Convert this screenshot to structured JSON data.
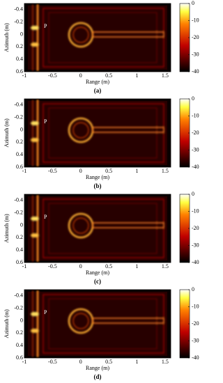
{
  "chart_data": [
    {
      "type": "heatmap",
      "caption": "(a)",
      "xlabel": "Range (m)",
      "ylabel": "Azimuth (m)",
      "annotation": "P",
      "xlim": [
        -1,
        1.6
      ],
      "xticks": [
        -1,
        -0.5,
        0,
        0.5,
        1,
        1.5
      ],
      "ylim": [
        -0.5,
        0.6
      ],
      "yticks": [
        -0.4,
        -0.2,
        0,
        0.2,
        0.4,
        0.6
      ],
      "colormap": "hot",
      "clim": [
        -40,
        0
      ],
      "cticks": [
        0,
        -10,
        -20,
        -30,
        -40
      ]
    },
    {
      "type": "heatmap",
      "caption": "(b)",
      "xlabel": "Range (m)",
      "ylabel": "Azimuth (m)",
      "annotation": "P",
      "xlim": [
        -1,
        1.6
      ],
      "xticks": [
        -1,
        -0.5,
        0,
        0.5,
        1,
        1.5
      ],
      "ylim": [
        -0.5,
        0.6
      ],
      "yticks": [
        -0.4,
        -0.2,
        0,
        0.2,
        0.4,
        0.6
      ],
      "colormap": "hot",
      "clim": [
        -40,
        0
      ],
      "cticks": [
        0,
        -10,
        -20,
        -30,
        -40
      ]
    },
    {
      "type": "heatmap",
      "caption": "(c)",
      "xlabel": "Range (m)",
      "ylabel": "Azimuth (m)",
      "annotation": "P",
      "xlim": [
        -1,
        1.6
      ],
      "xticks": [
        -1,
        -0.5,
        0,
        0.5,
        1,
        1.5
      ],
      "ylim": [
        -0.5,
        0.6
      ],
      "yticks": [
        -0.4,
        -0.2,
        0,
        0.2,
        0.4,
        0.6
      ],
      "colormap": "hot",
      "clim": [
        -40,
        0
      ],
      "cticks": [
        0,
        -10,
        -20,
        -30,
        -40
      ]
    },
    {
      "type": "heatmap",
      "caption": "(d)",
      "xlabel": "Range (m)",
      "ylabel": "Azimuth (m)",
      "annotation": "P",
      "xlim": [
        -1,
        1.6
      ],
      "xticks": [
        -1,
        -0.5,
        0,
        0.5,
        1,
        1.5
      ],
      "ylim": [
        -0.5,
        0.6
      ],
      "yticks": [
        -0.4,
        -0.2,
        0,
        0.2,
        0.4,
        0.6
      ],
      "colormap": "hot",
      "clim": [
        -40,
        0
      ],
      "cticks": [
        0,
        -10,
        -20,
        -30,
        -40
      ]
    }
  ]
}
